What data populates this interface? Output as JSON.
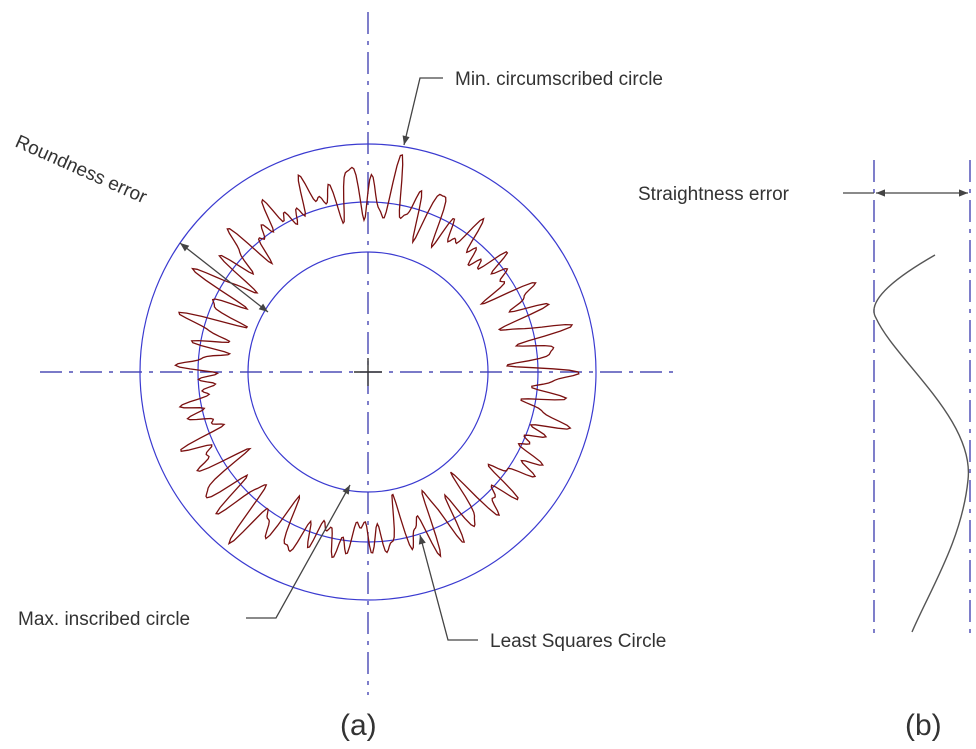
{
  "labels": {
    "min_circumscribed": "Min. circumscribed circle",
    "roundness_error": "Roundness error",
    "straightness_error": "Straightness error",
    "max_inscribed": "Max. inscribed circle",
    "least_squares": "Least Squares Circle"
  },
  "captions": {
    "a": "(a)",
    "b": "(b)"
  }
}
